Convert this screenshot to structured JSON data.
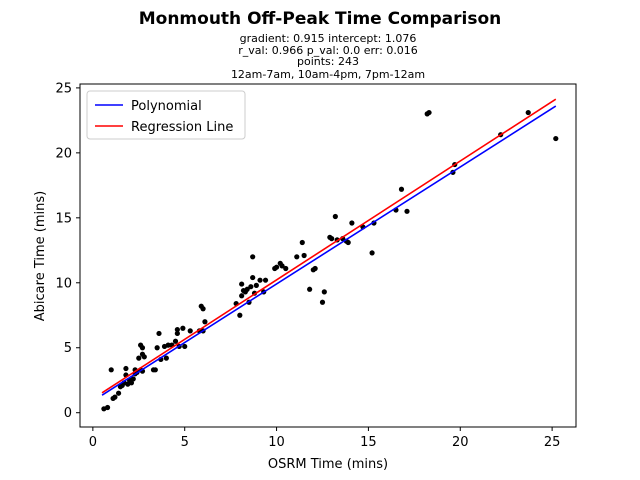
{
  "chart_data": {
    "type": "scatter",
    "title": "Monmouth Off-Peak Time Comparison",
    "subtitle_lines": [
      "gradient: 0.915  intercept: 1.076",
      "r_val: 0.966  p_val: 0.0  err: 0.016",
      "points: 243",
      "12am-7am, 10am-4pm, 7pm-12am"
    ],
    "xlabel": "OSRM Time (mins)",
    "ylabel": "Abicare Time (mins)",
    "xlim": [
      -0.7,
      26.3
    ],
    "ylim": [
      -1.1,
      25.3
    ],
    "xticks": [
      0,
      5,
      10,
      15,
      20,
      25
    ],
    "yticks": [
      0,
      5,
      10,
      15,
      20,
      25
    ],
    "grid": false,
    "legend_position": "upper-left",
    "series": [
      {
        "name": "Polynomial",
        "kind": "line",
        "color": "#0000ff",
        "x": [
          0.5,
          25.2
        ],
        "y": [
          1.35,
          23.6
        ]
      },
      {
        "name": "Regression Line",
        "kind": "line",
        "color": "#ff0000",
        "x": [
          0.5,
          25.2
        ],
        "y": [
          1.53,
          24.13
        ]
      },
      {
        "kind": "scatter",
        "color": "#000000",
        "points": [
          [
            0.6,
            0.3
          ],
          [
            0.8,
            0.4
          ],
          [
            1.0,
            3.3
          ],
          [
            1.1,
            1.1
          ],
          [
            1.2,
            1.2
          ],
          [
            1.4,
            1.5
          ],
          [
            1.5,
            2.0
          ],
          [
            1.6,
            2.1
          ],
          [
            1.7,
            2.3
          ],
          [
            1.8,
            2.9
          ],
          [
            1.8,
            3.4
          ],
          [
            1.9,
            2.2
          ],
          [
            2.0,
            2.5
          ],
          [
            2.1,
            2.3
          ],
          [
            2.2,
            2.6
          ],
          [
            2.3,
            3.0
          ],
          [
            2.3,
            3.3
          ],
          [
            2.4,
            3.1
          ],
          [
            2.5,
            4.2
          ],
          [
            2.6,
            3.3
          ],
          [
            2.6,
            5.2
          ],
          [
            2.7,
            5.0
          ],
          [
            2.7,
            4.5
          ],
          [
            2.8,
            4.3
          ],
          [
            2.7,
            3.2
          ],
          [
            3.3,
            3.3
          ],
          [
            3.4,
            3.3
          ],
          [
            3.5,
            5.0
          ],
          [
            3.6,
            6.1
          ],
          [
            3.7,
            4.1
          ],
          [
            3.9,
            5.1
          ],
          [
            4.0,
            4.2
          ],
          [
            4.1,
            5.2
          ],
          [
            4.3,
            5.2
          ],
          [
            4.5,
            5.5
          ],
          [
            4.6,
            6.1
          ],
          [
            4.6,
            6.4
          ],
          [
            4.7,
            5.1
          ],
          [
            4.9,
            6.5
          ],
          [
            5.0,
            5.1
          ],
          [
            5.3,
            6.3
          ],
          [
            5.8,
            6.3
          ],
          [
            5.9,
            8.2
          ],
          [
            6.0,
            8.0
          ],
          [
            6.0,
            6.3
          ],
          [
            6.1,
            7.0
          ],
          [
            7.8,
            8.4
          ],
          [
            8.0,
            7.5
          ],
          [
            8.1,
            9.0
          ],
          [
            8.1,
            9.9
          ],
          [
            8.2,
            9.4
          ],
          [
            8.3,
            9.3
          ],
          [
            8.4,
            9.5
          ],
          [
            8.5,
            8.5
          ],
          [
            8.6,
            9.7
          ],
          [
            8.7,
            10.4
          ],
          [
            8.7,
            12.0
          ],
          [
            8.8,
            9.2
          ],
          [
            8.9,
            9.8
          ],
          [
            9.1,
            10.2
          ],
          [
            9.3,
            9.3
          ],
          [
            9.4,
            10.2
          ],
          [
            9.9,
            11.1
          ],
          [
            10.0,
            11.2
          ],
          [
            10.2,
            11.5
          ],
          [
            10.3,
            11.3
          ],
          [
            10.5,
            11.1
          ],
          [
            11.1,
            12.0
          ],
          [
            11.4,
            13.1
          ],
          [
            11.5,
            12.1
          ],
          [
            11.8,
            9.5
          ],
          [
            12.0,
            11.0
          ],
          [
            12.1,
            11.1
          ],
          [
            12.5,
            8.5
          ],
          [
            12.6,
            9.3
          ],
          [
            12.9,
            13.5
          ],
          [
            13.0,
            13.4
          ],
          [
            13.2,
            15.1
          ],
          [
            13.3,
            13.3
          ],
          [
            13.6,
            13.4
          ],
          [
            13.8,
            13.2
          ],
          [
            13.9,
            13.1
          ],
          [
            14.1,
            14.6
          ],
          [
            14.7,
            14.3
          ],
          [
            15.2,
            12.3
          ],
          [
            15.3,
            14.6
          ],
          [
            16.5,
            15.6
          ],
          [
            16.8,
            17.2
          ],
          [
            17.1,
            15.5
          ],
          [
            18.2,
            23.0
          ],
          [
            18.3,
            23.1
          ],
          [
            19.6,
            18.5
          ],
          [
            19.7,
            19.1
          ],
          [
            22.2,
            21.4
          ],
          [
            23.7,
            23.1
          ],
          [
            25.2,
            21.1
          ]
        ]
      }
    ]
  }
}
